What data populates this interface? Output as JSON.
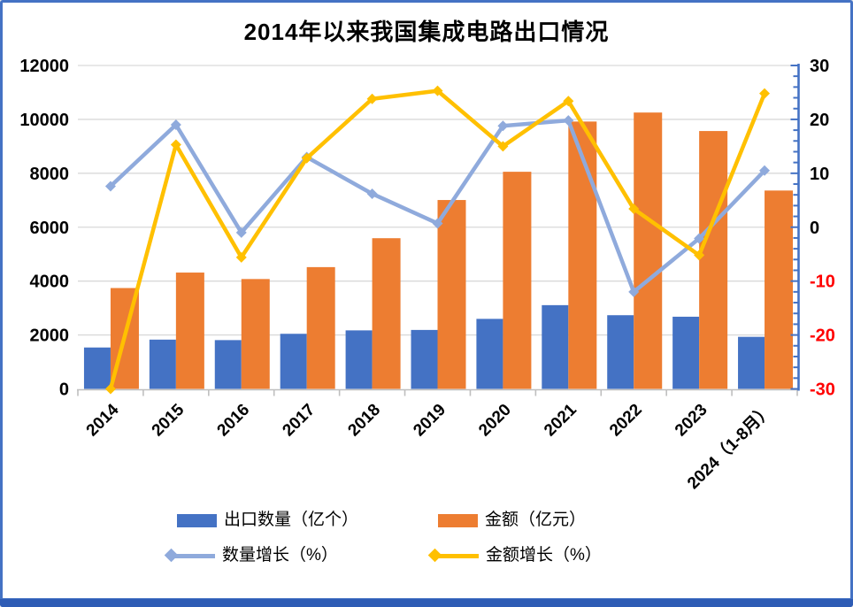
{
  "frame": {
    "background": "#FFFFFF",
    "border_color": "#4472C4",
    "bottom_bar_color": "#2E5CB5"
  },
  "chart_data": {
    "type": "combo-bar-line",
    "title": "2014年以来我国集成电路出口情况",
    "categories": [
      "2014",
      "2015",
      "2016",
      "2017",
      "2018",
      "2019",
      "2020",
      "2021",
      "2022",
      "2023",
      "2024（1-8月）"
    ],
    "series": [
      {
        "name": "出口数量（亿个）",
        "type": "bar",
        "axis": "left",
        "color": "#4472C4",
        "values": [
          1536,
          1828,
          1810,
          2044,
          2171,
          2187,
          2598,
          3107,
          2734,
          2678,
          1931
        ]
      },
      {
        "name": "金额（亿元）",
        "type": "bar",
        "axis": "left",
        "color": "#ED7D31",
        "values": [
          3742,
          4316,
          4076,
          4518,
          5591,
          7008,
          8056,
          9920,
          10254,
          9568,
          7360
        ]
      },
      {
        "name": "数量增长（%）",
        "type": "line",
        "axis": "right",
        "color": "#8FAADC",
        "marker": "diamond",
        "values": [
          7.6,
          19.0,
          -1.0,
          13.0,
          6.2,
          0.7,
          18.8,
          19.8,
          -12.0,
          -2.1,
          10.5
        ]
      },
      {
        "name": "金额增长（%）",
        "type": "line",
        "axis": "right",
        "color": "#FFC000",
        "marker": "diamond",
        "values": [
          -30.6,
          15.3,
          -5.6,
          12.8,
          23.8,
          25.3,
          15.0,
          23.4,
          3.4,
          -5.2,
          24.8
        ]
      }
    ],
    "left_axis": {
      "min": 0,
      "max": 12000,
      "ticks": [
        0,
        2000,
        4000,
        6000,
        8000,
        10000,
        12000
      ],
      "label_color": "#000000"
    },
    "right_axis": {
      "min": -30,
      "max": 30,
      "ticks": [
        -30,
        -20,
        -10,
        0,
        10,
        20,
        30
      ],
      "minor_step": 2,
      "axis_color": "#4472C4",
      "positive_label_color": "#000000",
      "negative_label_color": "#FF0000"
    },
    "gridline_color": "#D9D9D9",
    "bottom_axis_color": "#BFBFBF",
    "grid": "horizontal",
    "legend_position": "bottom"
  },
  "legend": {
    "items": [
      {
        "label": "出口数量（亿个）",
        "marker": "bar-swatch",
        "color": "#4472C4"
      },
      {
        "label": "金额（亿元）",
        "marker": "bar-swatch",
        "color": "#ED7D31"
      },
      {
        "label": "数量增长（%）",
        "marker": "line-diamond",
        "color": "#8FAADC"
      },
      {
        "label": "金额增长（%）",
        "marker": "line-diamond",
        "color": "#FFC000"
      }
    ]
  }
}
